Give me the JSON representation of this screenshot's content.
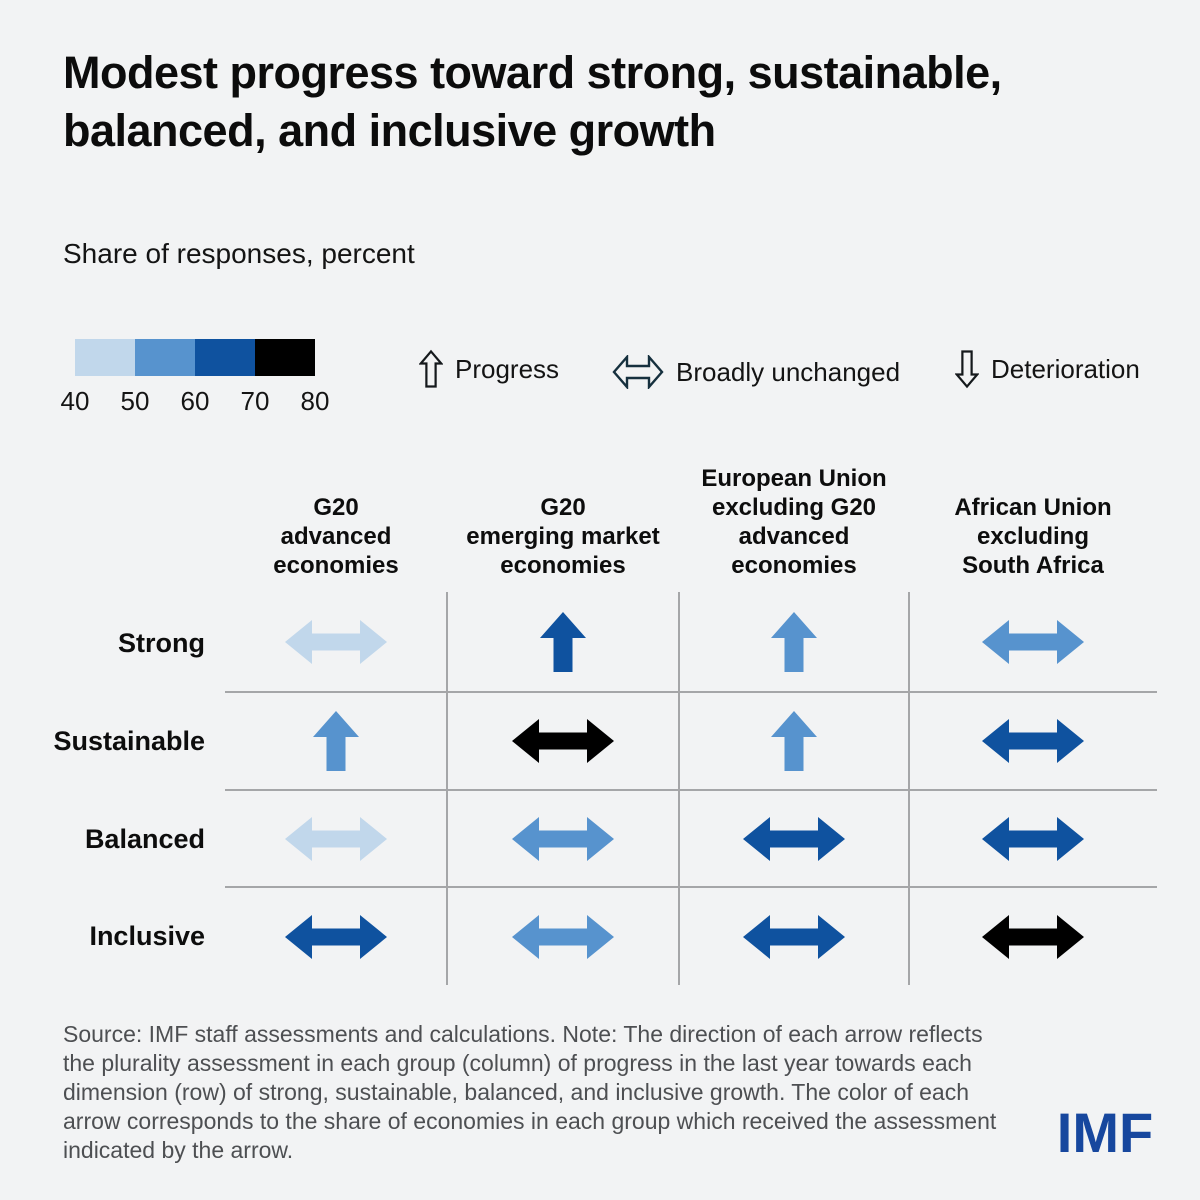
{
  "title": "Modest progress toward strong, sustainable,\nbalanced, and inclusive growth",
  "subtitle": "Share of responses, percent",
  "color_scale": {
    "tick_labels": [
      "40",
      "50",
      "60",
      "70",
      "80"
    ],
    "colors": [
      "#c1d7eb",
      "#5793ce",
      "#0f529f",
      "#000000"
    ]
  },
  "arrow_legend": {
    "items": [
      {
        "icon": "up-outline-arrow",
        "label": "Progress"
      },
      {
        "icon": "left-right-outline-arrow",
        "label": "Broadly unchanged"
      },
      {
        "icon": "down-outline-arrow",
        "label": "Deterioration"
      }
    ]
  },
  "chart_data": {
    "type": "heatmap",
    "title": "Modest progress toward strong, sustainable, balanced, and inclusive growth",
    "units": "Share of responses, percent",
    "legend_position": "top",
    "color_bin_edges": [
      40,
      50,
      60,
      70,
      80
    ],
    "color_bins": {
      "#c1d7eb": "40-50",
      "#5793ce": "50-60",
      "#0f529f": "60-70",
      "#000000": "70-80"
    },
    "columns": [
      "G20 advanced economies",
      "G20 emerging market economies",
      "European Union excluding G20 advanced economies",
      "African Union excluding South Africa"
    ],
    "column_headers": [
      "G20\nadvanced\neconomies",
      "G20\nemerging market\neconomies",
      "European Union\nexcluding G20\nadvanced\neconomies",
      "African Union\nexcluding\nSouth Africa"
    ],
    "rows": [
      "Strong",
      "Sustainable",
      "Balanced",
      "Inclusive"
    ],
    "cells": [
      [
        {
          "direction": "broadly-unchanged",
          "share_bin": "40-50",
          "color": "#c1d7eb"
        },
        {
          "direction": "progress",
          "share_bin": "60-70",
          "color": "#0f529f"
        },
        {
          "direction": "progress",
          "share_bin": "50-60",
          "color": "#5793ce"
        },
        {
          "direction": "broadly-unchanged",
          "share_bin": "50-60",
          "color": "#5793ce"
        }
      ],
      [
        {
          "direction": "progress",
          "share_bin": "50-60",
          "color": "#5793ce"
        },
        {
          "direction": "broadly-unchanged",
          "share_bin": "70-80",
          "color": "#000000"
        },
        {
          "direction": "progress",
          "share_bin": "50-60",
          "color": "#5793ce"
        },
        {
          "direction": "broadly-unchanged",
          "share_bin": "60-70",
          "color": "#0f529f"
        }
      ],
      [
        {
          "direction": "broadly-unchanged",
          "share_bin": "40-50",
          "color": "#c1d7eb"
        },
        {
          "direction": "broadly-unchanged",
          "share_bin": "50-60",
          "color": "#5793ce"
        },
        {
          "direction": "broadly-unchanged",
          "share_bin": "60-70",
          "color": "#0f529f"
        },
        {
          "direction": "broadly-unchanged",
          "share_bin": "60-70",
          "color": "#0f529f"
        }
      ],
      [
        {
          "direction": "broadly-unchanged",
          "share_bin": "60-70",
          "color": "#0f529f"
        },
        {
          "direction": "broadly-unchanged",
          "share_bin": "50-60",
          "color": "#5793ce"
        },
        {
          "direction": "broadly-unchanged",
          "share_bin": "60-70",
          "color": "#0f529f"
        },
        {
          "direction": "broadly-unchanged",
          "share_bin": "70-80",
          "color": "#000000"
        }
      ]
    ]
  },
  "source_note": "Source: IMF staff assessments and calculations. Note: The direction of each arrow reflects the plurality assessment in each group (column) of progress in the last year towards each dimension (row) of strong, sustainable, balanced, and inclusive growth. The color of each arrow corresponds to the share of economies in each group which received the assessment indicated by the arrow.",
  "logo": {
    "text": "IMF",
    "color": "#17479e"
  }
}
